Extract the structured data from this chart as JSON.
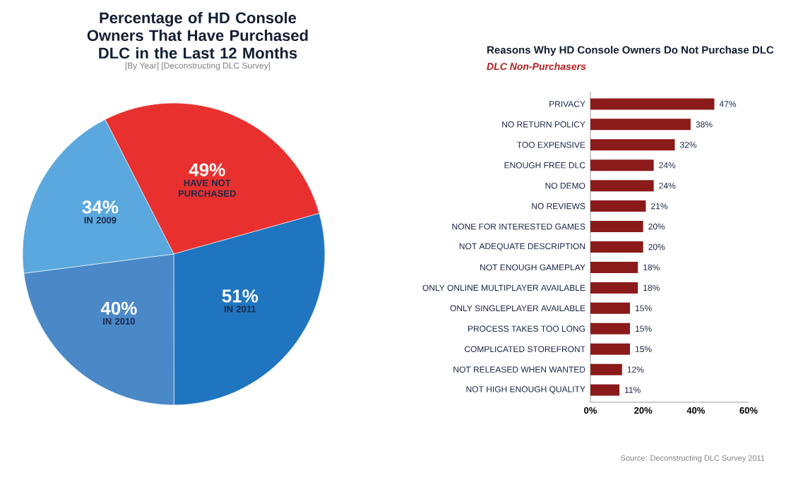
{
  "chart_data": [
    {
      "type": "pie",
      "title": "Percentage of HD Console Owners That Have Purchased DLC in the Last 12 Months",
      "subtitle": "[By Year] [Deconstructing DLC Survey]",
      "categories": [
        "HAVE NOT PURCHASED",
        "IN 2011",
        "IN 2010",
        "IN 2009"
      ],
      "values": [
        49,
        51,
        40,
        34
      ],
      "value_labels": [
        "49%",
        "51%",
        "40%",
        "34%"
      ],
      "colors": [
        "#e8312f",
        "#1f75bf",
        "#4a88c7",
        "#5aa8de"
      ]
    },
    {
      "type": "bar",
      "orientation": "horizontal",
      "title": "Reasons Why HD Console Owners Do Not Purchase DLC",
      "subtitle": "DLC Non-Purchasers",
      "categories": [
        "PRIVACY",
        "NO RETURN POLICY",
        "TOO EXPENSIVE",
        "ENOUGH FREE DLC",
        "NO DEMO",
        "NO REVIEWS",
        "NONE FOR INTERESTED GAMES",
        "NOT ADEQUATE DESCRIPTION",
        "NOT ENOUGH GAMEPLAY",
        "ONLY ONLINE MULTIPLAYER AVAILABLE",
        "ONLY SINGLEPLAYER AVAILABLE",
        "PROCESS TAKES TOO LONG",
        "COMPLICATED STOREFRONT",
        "NOT RELEASED WHEN WANTED",
        "NOT HIGH ENOUGH QUALITY"
      ],
      "values": [
        47,
        38,
        32,
        24,
        24,
        21,
        20,
        20,
        18,
        18,
        15,
        15,
        15,
        12,
        11
      ],
      "value_labels": [
        "47%",
        "38%",
        "32%",
        "24%",
        "24%",
        "21%",
        "20%",
        "20%",
        "18%",
        "18%",
        "15%",
        "15%",
        "15%",
        "12%",
        "11%"
      ],
      "color": "#8b1a1a",
      "xlim": [
        0,
        60
      ],
      "xticks": [
        {
          "value": 0,
          "label": "0%"
        },
        {
          "value": 20,
          "label": "20%"
        },
        {
          "value": 40,
          "label": "40%"
        },
        {
          "value": 60,
          "label": "60%"
        }
      ],
      "annotations": [
        "Source: Deconstructing DLC Survey 2011"
      ]
    }
  ]
}
